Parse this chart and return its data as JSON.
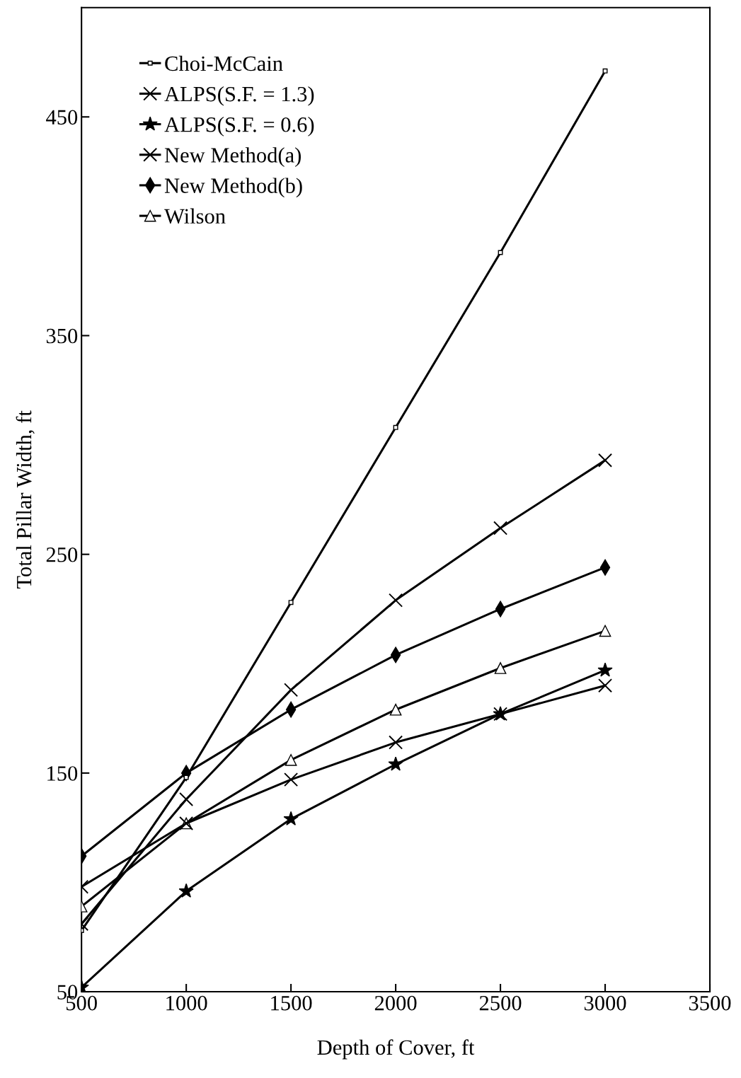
{
  "chart_data": {
    "type": "line",
    "xlabel": "Depth of Cover, ft",
    "ylabel": "Total Pillar Width, ft",
    "x": [
      500,
      1000,
      1500,
      2000,
      2500,
      3000
    ],
    "xlim": [
      500,
      3500
    ],
    "xticks": [
      500,
      1000,
      1500,
      2000,
      2500,
      3000,
      3500
    ],
    "ylim": [
      50,
      500
    ],
    "yticks": [
      50,
      150,
      250,
      350,
      450
    ],
    "grid": false,
    "legend": "top left",
    "line_style": "solid",
    "series": [
      {
        "name": "Choi-McCain",
        "color": "#000000",
        "marker": "square",
        "values": [
          78,
          148,
          228,
          308,
          388,
          471
        ]
      },
      {
        "name": "ALPS(S.F. = 1.3)",
        "color": "#000000",
        "marker": "cross",
        "values": [
          81,
          138,
          188,
          229,
          262,
          293
        ]
      },
      {
        "name": "ALPS(S.F. = 0.6)",
        "color": "#000000",
        "marker": "star",
        "values": [
          52,
          96,
          129,
          154,
          177,
          197
        ]
      },
      {
        "name": "New Method(a)",
        "color": "#000000",
        "marker": "cross",
        "values": [
          98,
          127,
          147,
          164,
          177,
          190
        ]
      },
      {
        "name": "New Method(b)",
        "color": "#000000",
        "marker": "diamond",
        "values": [
          112,
          150,
          179,
          204,
          225,
          244
        ]
      },
      {
        "name": "Wilson",
        "color": "#000000",
        "marker": "triangle",
        "values": [
          89,
          127,
          156,
          179,
          198,
          215
        ]
      }
    ]
  }
}
